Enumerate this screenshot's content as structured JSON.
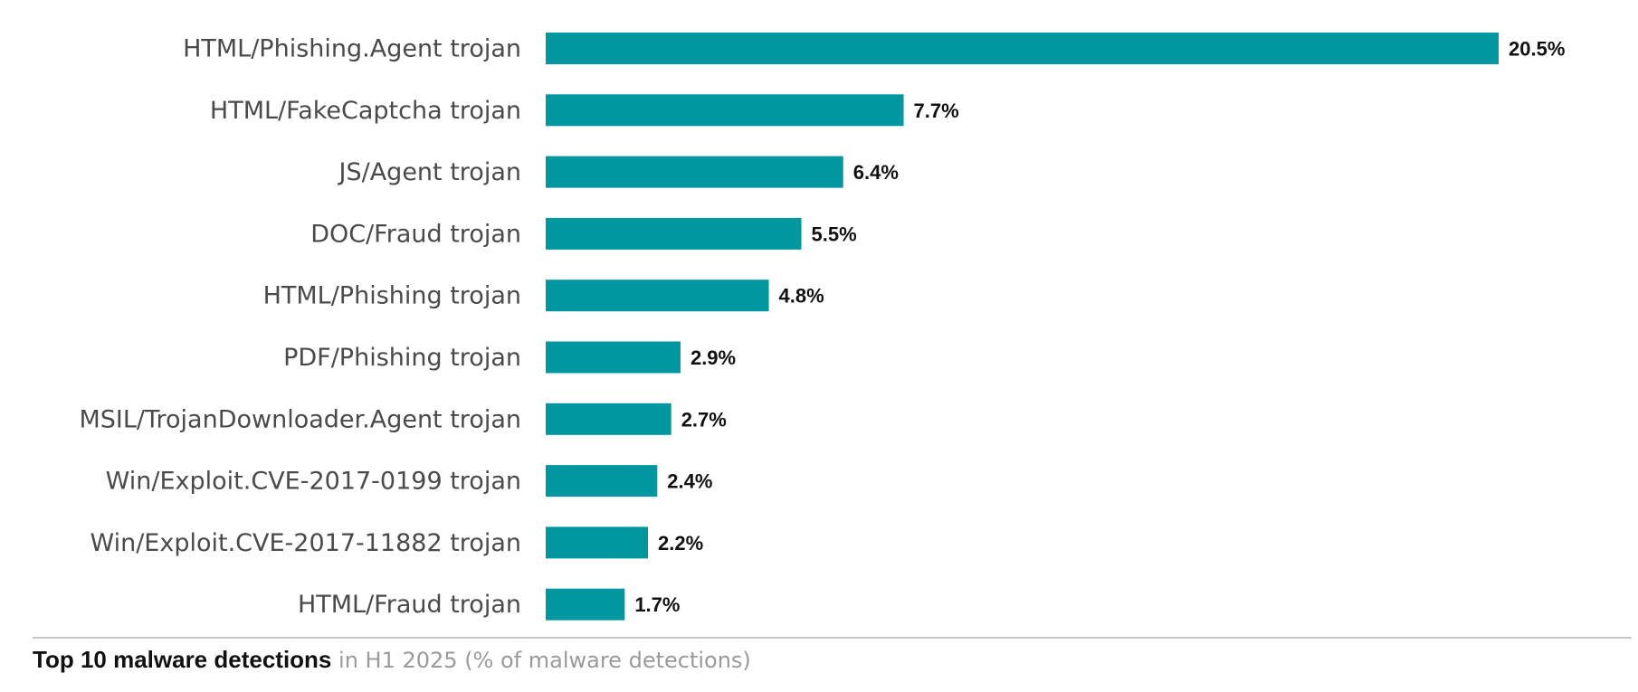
{
  "chart_data": {
    "type": "bar",
    "orientation": "horizontal",
    "categories": [
      "HTML/Phishing.Agent trojan",
      "HTML/FakeCaptcha trojan",
      "JS/Agent trojan",
      "DOC/Fraud trojan",
      "HTML/Phishing trojan",
      "PDF/Phishing trojan",
      "MSIL/TrojanDownloader.Agent trojan",
      "Win/Exploit.CVE-2017-0199 trojan",
      "Win/Exploit.CVE-2017-11882 trojan",
      "HTML/Fraud trojan"
    ],
    "values": [
      20.5,
      7.7,
      6.4,
      5.5,
      4.8,
      2.9,
      2.7,
      2.4,
      2.2,
      1.7
    ],
    "value_labels": [
      "20.5%",
      "7.7%",
      "6.4%",
      "5.5%",
      "4.8%",
      "2.9%",
      "2.7%",
      "2.4%",
      "2.2%",
      "1.7%"
    ],
    "bar_color": "#0097a0",
    "xlim": [
      0,
      20.5
    ],
    "grid": false,
    "legend": "none"
  },
  "caption": {
    "bold": "Top 10 malware detections",
    "light": " in H1 2025 (% of malware detections)"
  }
}
